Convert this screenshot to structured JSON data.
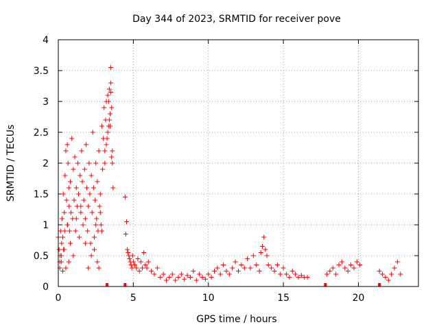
{
  "chart_data": {
    "type": "scatter",
    "title": "Day 344 of 2023, SRMTID for receiver pove",
    "xlabel": "GPS time / hours",
    "ylabel": "SRMTID / TECUs",
    "xlim": [
      0,
      24
    ],
    "ylim": [
      0,
      4
    ],
    "x_ticks": [
      0,
      5,
      10,
      15,
      20
    ],
    "x_tick_labels": [
      "0",
      "5",
      "10",
      "15",
      "20"
    ],
    "y_ticks": [
      0,
      0.5,
      1,
      1.5,
      2,
      2.5,
      3,
      3.5,
      4
    ],
    "y_tick_labels": [
      "0",
      "0.5",
      "1",
      "1.5",
      "2",
      "2.5",
      "3",
      "3.5",
      "4"
    ],
    "grid": true,
    "marker": "plus",
    "color": "#ff0000",
    "gap_markers_x": [
      3.25,
      4.45,
      17.8,
      21.4
    ],
    "series": [
      {
        "name": "SRMTID",
        "x": [
          0.0,
          0.05,
          0.1,
          0.12,
          0.15,
          0.2,
          0.22,
          0.25,
          0.3,
          0.33,
          0.35,
          0.4,
          0.42,
          0.45,
          0.5,
          0.55,
          0.6,
          0.62,
          0.65,
          0.7,
          0.72,
          0.75,
          0.8,
          0.85,
          0.9,
          0.95,
          1.0,
          1.05,
          1.1,
          1.15,
          1.2,
          1.25,
          1.3,
          1.35,
          1.4,
          1.45,
          1.5,
          1.55,
          1.6,
          1.65,
          1.7,
          1.75,
          1.8,
          1.85,
          1.9,
          1.95,
          2.0,
          2.05,
          2.1,
          2.15,
          2.2,
          2.25,
          2.3,
          2.35,
          2.4,
          2.45,
          2.5,
          2.55,
          2.6,
          2.65,
          2.7,
          2.75,
          2.8,
          2.85,
          2.9,
          2.95,
          3.0,
          3.05,
          3.1,
          3.15,
          3.2,
          3.25,
          3.3,
          3.35,
          3.4,
          3.45,
          3.5,
          3.55,
          3.6,
          3.65,
          3.1,
          3.2,
          3.3,
          3.35,
          3.4,
          3.45,
          3.5,
          3.5,
          3.55,
          3.6,
          2.6,
          2.7,
          2.8,
          2.9,
          2.5,
          2.4,
          2.2,
          2.0,
          1.8,
          1.5,
          1.2,
          1.0,
          0.8,
          0.7,
          0.6,
          0.5,
          0.4,
          0.3,
          0.2,
          0.1,
          4.45,
          4.5,
          4.55,
          4.6,
          4.65,
          4.7,
          4.75,
          4.8,
          4.85,
          4.9,
          4.95,
          5.0,
          5.1,
          5.2,
          5.3,
          5.4,
          5.5,
          5.6,
          5.7,
          5.8,
          5.9,
          6.0,
          6.2,
          6.4,
          6.6,
          6.8,
          7.0,
          7.2,
          7.4,
          7.6,
          7.8,
          8.0,
          8.2,
          8.4,
          8.6,
          8.8,
          9.0,
          9.2,
          9.4,
          9.6,
          9.8,
          10.0,
          10.2,
          10.4,
          10.6,
          10.8,
          11.0,
          11.2,
          11.4,
          11.6,
          11.8,
          12.0,
          12.2,
          12.4,
          12.6,
          12.8,
          13.0,
          13.2,
          13.4,
          13.5,
          13.6,
          13.7,
          13.8,
          13.9,
          14.0,
          14.2,
          14.4,
          14.6,
          14.8,
          15.0,
          15.2,
          15.4,
          15.6,
          15.8,
          16.0,
          16.2,
          16.4,
          16.6,
          17.9,
          18.1,
          18.3,
          18.5,
          18.7,
          18.9,
          19.1,
          19.3,
          19.5,
          19.7,
          19.9,
          20.1,
          21.4,
          21.6,
          21.8,
          22.0,
          22.2,
          22.4,
          22.6,
          22.8
        ],
        "y": [
          0.8,
          0.6,
          0.3,
          0.5,
          0.9,
          0.4,
          0.7,
          1.1,
          0.8,
          1.5,
          0.6,
          1.2,
          0.9,
          1.8,
          2.2,
          1.4,
          2.3,
          1.0,
          2.0,
          1.6,
          1.3,
          0.9,
          1.7,
          1.2,
          2.4,
          1.1,
          1.9,
          1.4,
          2.1,
          0.9,
          1.6,
          1.3,
          2.0,
          1.5,
          0.8,
          1.8,
          1.2,
          2.2,
          1.7,
          1.0,
          1.4,
          1.9,
          1.1,
          2.3,
          1.6,
          0.9,
          1.3,
          2.0,
          1.5,
          0.7,
          1.8,
          1.2,
          2.5,
          1.6,
          0.8,
          1.4,
          2.0,
          1.1,
          1.7,
          0.9,
          2.2,
          1.3,
          1.5,
          1.0,
          2.6,
          1.9,
          2.4,
          2.9,
          2.2,
          2.7,
          3.0,
          2.4,
          3.1,
          2.6,
          3.2,
          2.8,
          3.55,
          2.1,
          2.0,
          1.6,
          2.0,
          2.3,
          2.5,
          3.0,
          2.7,
          2.6,
          3.3,
          3.15,
          2.9,
          2.2,
          0.4,
          0.3,
          1.2,
          0.9,
          1.0,
          0.6,
          0.5,
          0.3,
          0.7,
          1.3,
          1.1,
          0.5,
          0.7,
          0.4,
          1.0,
          0.3,
          0.6,
          0.25,
          0.5,
          0.4,
          1.45,
          0.85,
          1.05,
          0.6,
          0.55,
          0.5,
          0.45,
          0.4,
          0.35,
          0.3,
          0.5,
          0.4,
          0.35,
          0.3,
          0.45,
          0.25,
          0.4,
          0.3,
          0.55,
          0.35,
          0.3,
          0.4,
          0.25,
          0.2,
          0.3,
          0.15,
          0.2,
          0.1,
          0.15,
          0.2,
          0.1,
          0.15,
          0.2,
          0.12,
          0.18,
          0.15,
          0.25,
          0.1,
          0.2,
          0.15,
          0.12,
          0.2,
          0.15,
          0.25,
          0.3,
          0.2,
          0.35,
          0.25,
          0.2,
          0.3,
          0.4,
          0.25,
          0.35,
          0.3,
          0.45,
          0.3,
          0.5,
          0.35,
          0.25,
          0.55,
          0.65,
          0.8,
          0.6,
          0.5,
          0.35,
          0.3,
          0.25,
          0.35,
          0.2,
          0.3,
          0.2,
          0.15,
          0.25,
          0.2,
          0.15,
          0.18,
          0.15,
          0.15,
          0.2,
          0.25,
          0.3,
          0.2,
          0.35,
          0.4,
          0.3,
          0.25,
          0.35,
          0.3,
          0.4,
          0.35,
          0.25,
          0.2,
          0.15,
          0.1,
          0.2,
          0.3,
          0.4,
          0.2
        ]
      }
    ]
  }
}
